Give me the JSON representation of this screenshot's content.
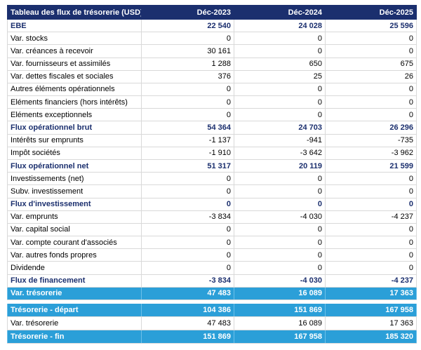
{
  "table": {
    "header": [
      "Tableau des flux de trésorerie (USD)",
      "Déc-2023",
      "Déc-2024",
      "Déc-2025"
    ],
    "rows": [
      [
        "EBE",
        "22 540",
        "24 028",
        "25 596"
      ],
      [
        "Var. stocks",
        "0",
        "0",
        "0"
      ],
      [
        "Var. créances à recevoir",
        "30 161",
        "0",
        "0"
      ],
      [
        "Var. fournisseurs et assimilés",
        "1 288",
        "650",
        "675"
      ],
      [
        "Var. dettes fiscales et sociales",
        "376",
        "25",
        "26"
      ],
      [
        "Autres éléments opérationnels",
        "0",
        "0",
        "0"
      ],
      [
        "Eléments financiers (hors intérêts)",
        "0",
        "0",
        "0"
      ],
      [
        "Eléments exceptionnels",
        "0",
        "0",
        "0"
      ],
      [
        "Flux opérationnel brut",
        "54 364",
        "24 703",
        "26 296"
      ],
      [
        "Intérêts sur emprunts",
        "-1 137",
        "-941",
        "-735"
      ],
      [
        "Impôt sociétés",
        "-1 910",
        "-3 642",
        "-3 962"
      ],
      [
        "Flux opérationnel net",
        "51 317",
        "20 119",
        "21 599"
      ],
      [
        "Investissements (net)",
        "0",
        "0",
        "0"
      ],
      [
        "Subv. investissement",
        "0",
        "0",
        "0"
      ],
      [
        "Flux d'investissement",
        "0",
        "0",
        "0"
      ],
      [
        "Var. emprunts",
        "-3 834",
        "-4 030",
        "-4 237"
      ],
      [
        "Var. capital social",
        "0",
        "0",
        "0"
      ],
      [
        "Var. compte courant d'associés",
        "0",
        "0",
        "0"
      ],
      [
        "Var. autres fonds propres",
        "0",
        "0",
        "0"
      ],
      [
        "Dividende",
        "0",
        "0",
        "0"
      ],
      [
        "Flux de financement",
        "-3 834",
        "-4 030",
        "-4 237"
      ],
      [
        "Var. trésorerie",
        "47 483",
        "16 089",
        "17 363"
      ]
    ],
    "summary": [
      [
        "Trésorerie - départ",
        "104 386",
        "151 869",
        "167 958"
      ],
      [
        "Var. trésorerie",
        "47 483",
        "16 089",
        "17 363"
      ],
      [
        "Trésorerie - fin",
        "151 869",
        "167 958",
        "185 320"
      ]
    ]
  }
}
